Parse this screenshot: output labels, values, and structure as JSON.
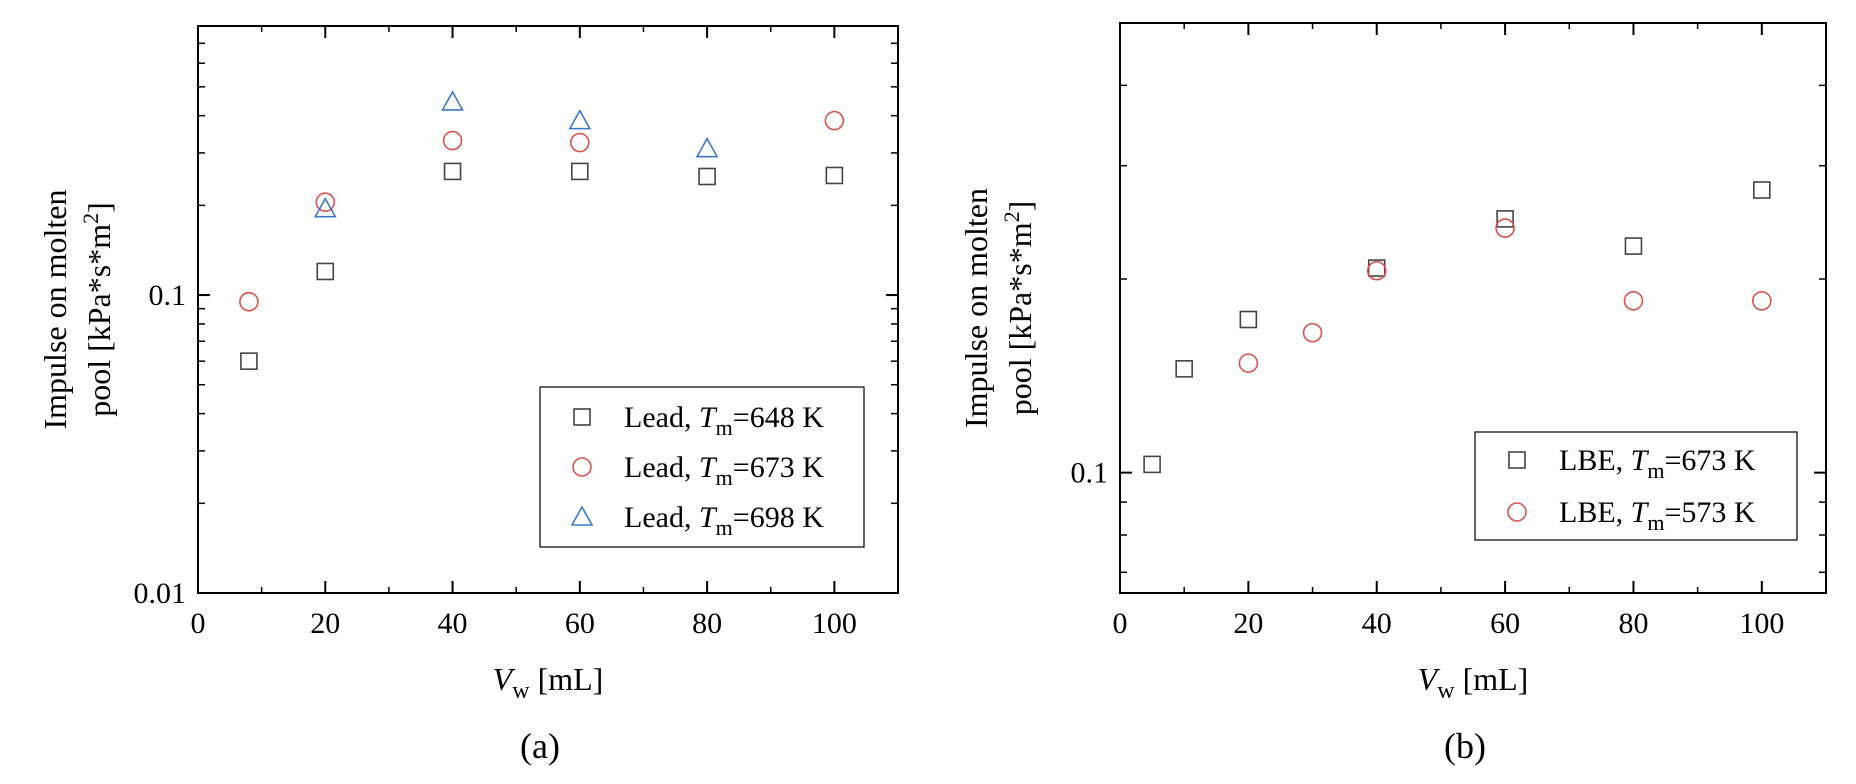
{
  "chart_data": [
    {
      "type": "scatter",
      "panel_label": "(a)",
      "title": "",
      "xlabel_main": "V",
      "xlabel_sub": "w",
      "xlabel_unit": " [mL]",
      "ylabel_line1": "Impulse on molten",
      "ylabel_line2_pre": "pool [kPa*s*m",
      "ylabel_line2_sup": "2",
      "ylabel_line2_post": "]",
      "xlim": [
        0,
        110
      ],
      "ylim": [
        0.01,
        0.8
      ],
      "yscale": "log",
      "x_ticks": [
        0,
        20,
        40,
        60,
        80,
        100
      ],
      "x_tick_labels": [
        "0",
        "20",
        "40",
        "60",
        "80",
        "100"
      ],
      "y_ticks": [
        0.01,
        0.1
      ],
      "y_tick_labels": [
        "0.01",
        "0.1"
      ],
      "legend_position": "lower-right",
      "grid": false,
      "series": [
        {
          "name_pre": "Lead, ",
          "name_italic": "T",
          "name_sub": "m",
          "name_post": "=648 K",
          "marker": "square",
          "color": "#444444",
          "x": [
            8,
            20,
            40,
            60,
            80,
            100
          ],
          "y": [
            0.06,
            0.12,
            0.26,
            0.26,
            0.25,
            0.252
          ]
        },
        {
          "name_pre": "Lead, ",
          "name_italic": "T",
          "name_sub": "m",
          "name_post": "=673 K",
          "marker": "circle",
          "color": "#d9534f",
          "x": [
            8,
            20,
            40,
            60,
            100
          ],
          "y": [
            0.095,
            0.205,
            0.33,
            0.325,
            0.385
          ]
        },
        {
          "name_pre": "Lead, ",
          "name_italic": "T",
          "name_sub": "m",
          "name_post": "=698 K",
          "marker": "triangle",
          "color": "#3a78c9",
          "x": [
            20,
            40,
            60,
            80
          ],
          "y": [
            0.195,
            0.445,
            0.385,
            0.31
          ]
        }
      ]
    },
    {
      "type": "scatter",
      "panel_label": "(b)",
      "title": "",
      "xlabel_main": "V",
      "xlabel_sub": "w",
      "xlabel_unit": " [mL]",
      "ylabel_line1": "Impulse on molten",
      "ylabel_line2_pre": "pool [kPa*s*m",
      "ylabel_line2_sup": "2",
      "ylabel_line2_post": "]",
      "xlim": [
        0,
        110
      ],
      "ylim": [
        0.065,
        0.5
      ],
      "yscale": "log",
      "x_ticks": [
        0,
        20,
        40,
        60,
        80,
        100
      ],
      "x_tick_labels": [
        "0",
        "20",
        "40",
        "60",
        "80",
        "100"
      ],
      "y_ticks": [
        0.1
      ],
      "y_tick_labels": [
        "0.1"
      ],
      "legend_position": "lower-right",
      "grid": false,
      "series": [
        {
          "name_pre": "LBE, ",
          "name_italic": "T",
          "name_sub": "m",
          "name_post": "=673 K",
          "marker": "square",
          "color": "#444444",
          "x": [
            5,
            10,
            20,
            40,
            60,
            80,
            100
          ],
          "y": [
            0.103,
            0.145,
            0.173,
            0.208,
            0.248,
            0.225,
            0.275
          ]
        },
        {
          "name_pre": "LBE, ",
          "name_italic": "T",
          "name_sub": "m",
          "name_post": "=573 K",
          "marker": "circle",
          "color": "#d9534f",
          "x": [
            20,
            30,
            40,
            60,
            100,
            80
          ],
          "y": [
            0.148,
            0.165,
            0.206,
            0.24,
            0.185,
            0.185
          ]
        }
      ]
    }
  ]
}
